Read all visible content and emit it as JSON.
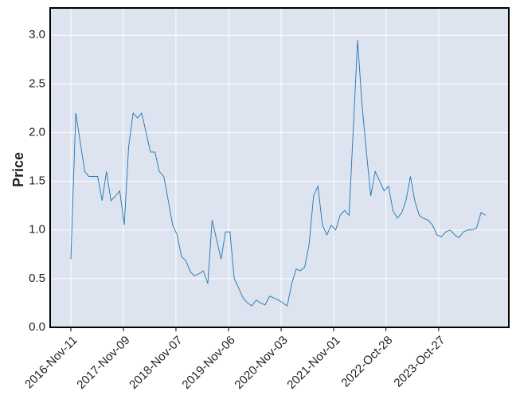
{
  "chart_data": {
    "type": "line",
    "ylabel": "Price",
    "color": "#1f77b4",
    "grid": true,
    "x": [
      "2016-11-11",
      "2016-12-15",
      "2017-01-15",
      "2017-02-15",
      "2017-03-15",
      "2017-04-15",
      "2017-05-15",
      "2017-06-15",
      "2017-07-15",
      "2017-08-15",
      "2017-09-15",
      "2017-10-15",
      "2017-11-15",
      "2017-12-15",
      "2018-01-15",
      "2018-02-15",
      "2018-03-15",
      "2018-04-15",
      "2018-05-15",
      "2018-06-15",
      "2018-07-15",
      "2018-08-15",
      "2018-09-15",
      "2018-10-15",
      "2018-11-15",
      "2018-12-15",
      "2019-01-15",
      "2019-02-15",
      "2019-03-15",
      "2019-04-15",
      "2019-05-15",
      "2019-06-15",
      "2019-07-15",
      "2019-08-15",
      "2019-09-15",
      "2019-10-15",
      "2019-11-15",
      "2019-12-15",
      "2020-01-15",
      "2020-02-15",
      "2020-03-15",
      "2020-04-15",
      "2020-05-15",
      "2020-06-15",
      "2020-07-15",
      "2020-08-15",
      "2020-09-15",
      "2020-10-15",
      "2020-11-15",
      "2020-12-15",
      "2021-01-15",
      "2021-02-15",
      "2021-03-15",
      "2021-04-15",
      "2021-05-15",
      "2021-06-15",
      "2021-07-15",
      "2021-08-15",
      "2021-09-15",
      "2021-10-15",
      "2021-11-15",
      "2021-12-15",
      "2022-01-15",
      "2022-02-15",
      "2022-03-15",
      "2022-04-15",
      "2022-05-15",
      "2022-06-15",
      "2022-07-15",
      "2022-08-15",
      "2022-09-15",
      "2022-10-15",
      "2022-11-15",
      "2022-12-15",
      "2023-01-15",
      "2023-02-15",
      "2023-03-15",
      "2023-04-15",
      "2023-05-15",
      "2023-06-15",
      "2023-07-15",
      "2023-08-15",
      "2023-09-15",
      "2023-10-15",
      "2023-11-15",
      "2023-12-15",
      "2024-01-15",
      "2024-02-15",
      "2024-03-15",
      "2024-04-15",
      "2024-05-15",
      "2024-06-15",
      "2024-07-15",
      "2024-08-15",
      "2024-09-15"
    ],
    "values": [
      0.7,
      2.2,
      1.9,
      1.6,
      1.55,
      1.55,
      1.55,
      1.3,
      1.6,
      1.3,
      1.35,
      1.4,
      1.05,
      1.85,
      2.2,
      2.15,
      2.2,
      2.0,
      1.8,
      1.8,
      1.6,
      1.55,
      1.3,
      1.05,
      0.95,
      0.73,
      0.68,
      0.57,
      0.53,
      0.55,
      0.58,
      0.45,
      1.1,
      0.9,
      0.7,
      0.98,
      0.98,
      0.5,
      0.4,
      0.3,
      0.25,
      0.22,
      0.28,
      0.25,
      0.23,
      0.32,
      0.3,
      0.28,
      0.25,
      0.22,
      0.45,
      0.6,
      0.58,
      0.62,
      0.85,
      1.35,
      1.45,
      1.05,
      0.95,
      1.05,
      1.0,
      1.15,
      1.2,
      1.15,
      2.0,
      2.95,
      2.3,
      1.8,
      1.35,
      1.6,
      1.5,
      1.4,
      1.45,
      1.2,
      1.12,
      1.18,
      1.3,
      1.55,
      1.3,
      1.15,
      1.12,
      1.1,
      1.05,
      0.95,
      0.93,
      0.98,
      1.0,
      0.95,
      0.92,
      0.98,
      1.0,
      1.0,
      1.02,
      1.18,
      1.15
    ],
    "xlim": [
      "2016-06-21",
      "2025-02-23"
    ],
    "xticks": [
      {
        "value": "2016-11-11",
        "label": "2016-Nov-11"
      },
      {
        "value": "2017-11-09",
        "label": "2017-Nov-09"
      },
      {
        "value": "2018-11-07",
        "label": "2018-Nov-07"
      },
      {
        "value": "2019-11-06",
        "label": "2019-Nov-06"
      },
      {
        "value": "2020-11-03",
        "label": "2020-Nov-03"
      },
      {
        "value": "2021-11-01",
        "label": "2021-Nov-01"
      },
      {
        "value": "2022-10-28",
        "label": "2022-Oct-28"
      },
      {
        "value": "2023-10-27",
        "label": "2023-Oct-27"
      }
    ],
    "ylim": [
      0,
      3.28
    ],
    "yticks": [
      {
        "value": 0,
        "label": "0.0"
      },
      {
        "value": 0.5,
        "label": "0.5"
      },
      {
        "value": 1,
        "label": "1.0"
      },
      {
        "value": 1.5,
        "label": "1.5"
      },
      {
        "value": 2,
        "label": "2.0"
      },
      {
        "value": 2.5,
        "label": "2.5"
      },
      {
        "value": 3,
        "label": "3.0"
      }
    ]
  }
}
